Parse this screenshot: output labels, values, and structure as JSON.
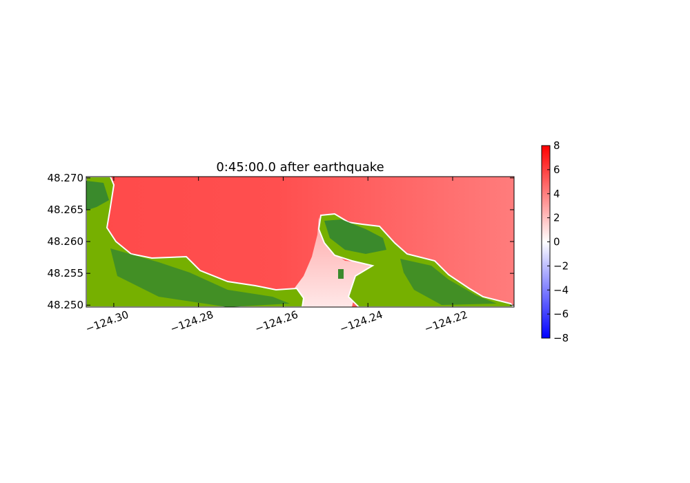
{
  "chart_data": [
    {
      "type": "heatmap",
      "title": "0:45:00.0 after earthquake",
      "xlabel": "",
      "ylabel": "",
      "xlim": [
        -124.3065,
        -124.2055
      ],
      "ylim": [
        48.2497,
        48.2702
      ],
      "x_ticks": [
        -124.3,
        -124.28,
        -124.26,
        -124.24,
        -124.22
      ],
      "x_tick_labels": [
        "−124.30",
        "−124.28",
        "−124.26",
        "−124.24",
        "−124.22"
      ],
      "y_ticks": [
        48.25,
        48.255,
        48.26,
        48.265,
        48.27
      ],
      "y_tick_labels": [
        "48.250",
        "48.255",
        "48.260",
        "48.265",
        "48.270"
      ],
      "grid": false,
      "series": [
        {
          "values_summary": {
            "water_surface_west": 5.5,
            "water_surface_east": 4.7,
            "harbor_inlet_min": 0.8,
            "harbor_inlet_max": 2.5
          }
        }
      ],
      "land_colors": [
        "#76b000",
        "#3a8a2c"
      ]
    },
    {
      "type": "colorbar",
      "range": [
        -8,
        8
      ],
      "ticks": [
        -8,
        -6,
        -4,
        -2,
        0,
        2,
        4,
        6,
        8
      ],
      "tick_labels": [
        "−8",
        "−6",
        "−4",
        "−2",
        "0",
        "2",
        "4",
        "6",
        "8"
      ],
      "colormap": [
        "#0000ff",
        "#ffffff",
        "#ff0000"
      ]
    }
  ]
}
